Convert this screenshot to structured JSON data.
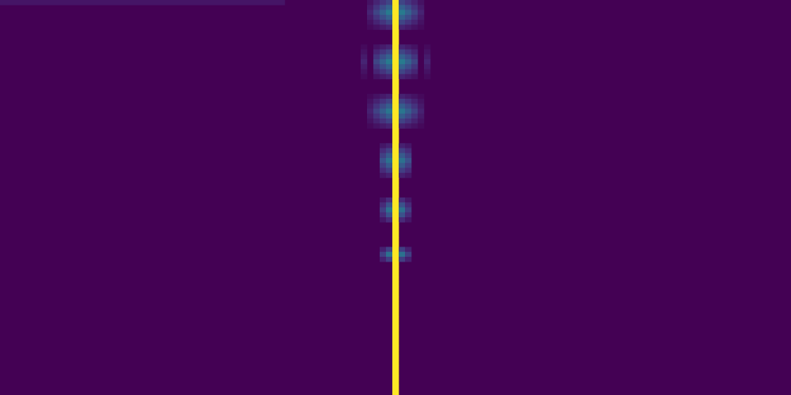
{
  "chart_data": {
    "type": "heatmap",
    "colormap": "viridis",
    "grid": false,
    "legend": "none",
    "n_cols": 125,
    "n_rows": 80,
    "xlim": [
      0,
      125
    ],
    "ylim": [
      0,
      80
    ],
    "background_value": 0,
    "column_line": {
      "col": 62,
      "value": 1.0
    },
    "top_stripe": {
      "row": 0,
      "col_start": 0,
      "col_end": 44,
      "value": 0.06
    },
    "blobs": [
      {
        "row": 2,
        "half_height": 3,
        "center_col": 62,
        "max_value": 0.42,
        "halfwidths": [
          1,
          2,
          3,
          4
        ]
      },
      {
        "row": 12,
        "half_height": 3,
        "center_col": 62,
        "max_value": 0.42,
        "halfwidths": [
          1,
          2,
          3,
          5
        ]
      },
      {
        "row": 22,
        "half_height": 3,
        "center_col": 62,
        "max_value": 0.4,
        "halfwidths": [
          1,
          2,
          3,
          4
        ]
      },
      {
        "row": 32,
        "half_height": 3,
        "center_col": 62,
        "max_value": 0.38,
        "halfwidths": [
          1,
          2,
          2
        ]
      },
      {
        "row": 42,
        "half_height": 2,
        "center_col": 62,
        "max_value": 0.38,
        "halfwidths": [
          1,
          2
        ]
      },
      {
        "row": 51,
        "half_height": 1,
        "center_col": 62,
        "max_value": 0.38,
        "halfwidths": [
          1,
          2
        ]
      }
    ]
  }
}
